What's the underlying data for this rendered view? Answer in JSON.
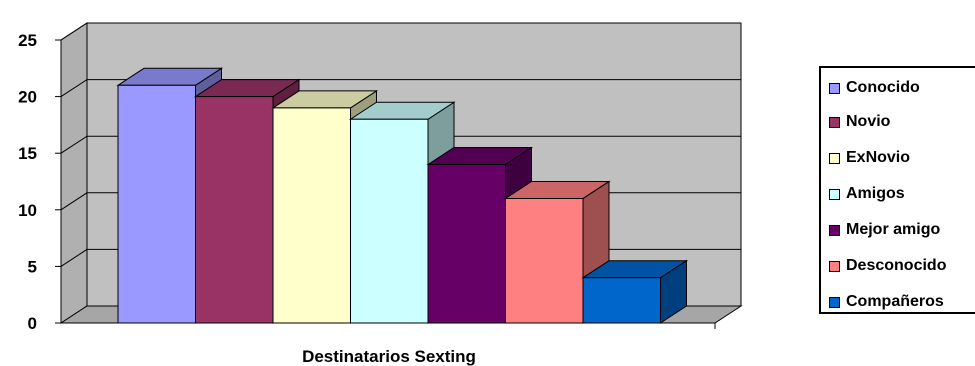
{
  "chart_data": {
    "type": "bar",
    "style": "3d-column",
    "xlabel": "Destinatarios Sexting",
    "ylabel": "",
    "ylim": [
      0,
      25
    ],
    "yticks": [
      0,
      5,
      10,
      15,
      20,
      25
    ],
    "grid": true,
    "legend_position": "right",
    "series": [
      {
        "name": "Conocido",
        "value": 21,
        "color": "#9999FF"
      },
      {
        "name": "Novio",
        "value": 20,
        "color": "#993366"
      },
      {
        "name": "ExNovio",
        "value": 19,
        "color": "#FFFFCC"
      },
      {
        "name": "Amigos",
        "value": 18,
        "color": "#CCFFFF"
      },
      {
        "name": "Mejor amigo",
        "value": 14,
        "color": "#660066"
      },
      {
        "name": "Desconocido",
        "value": 11,
        "color": "#FF8080"
      },
      {
        "name": "Compañeros",
        "value": 4,
        "color": "#0066CC"
      }
    ],
    "colors": {
      "wall": "#C0C0C0",
      "floor": "#A6A6A6"
    }
  }
}
